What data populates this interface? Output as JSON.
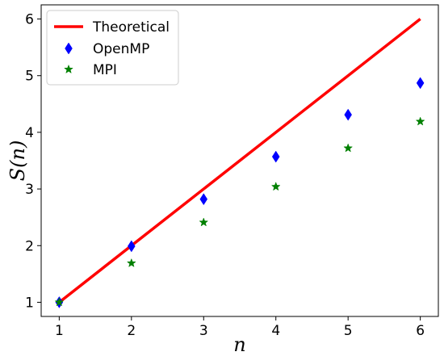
{
  "chart_data": {
    "type": "scatter",
    "xlabel": "n",
    "ylabel": "S(n)",
    "xlim": [
      0.75,
      6.25
    ],
    "ylim": [
      0.75,
      6.25
    ],
    "xticks": [
      1,
      2,
      3,
      4,
      5,
      6
    ],
    "yticks": [
      1,
      2,
      3,
      4,
      5,
      6
    ],
    "grid": false,
    "legend_position": "top-left",
    "series": [
      {
        "name": "Theoretical",
        "kind": "line",
        "color": "#ff0000",
        "x": [
          1,
          6
        ],
        "y": [
          1,
          6
        ]
      },
      {
        "name": "OpenMP",
        "kind": "scatter",
        "marker": "thin-diamond",
        "color": "#0000ff",
        "x": [
          1,
          2,
          3,
          4,
          5,
          6
        ],
        "y": [
          1.0,
          1.99,
          2.82,
          3.57,
          4.31,
          4.87
        ]
      },
      {
        "name": "MPI",
        "kind": "scatter",
        "marker": "star",
        "color": "#008000",
        "x": [
          1,
          2,
          3,
          4,
          5,
          6
        ],
        "y": [
          1.0,
          1.69,
          2.41,
          3.04,
          3.72,
          4.19
        ]
      }
    ]
  }
}
